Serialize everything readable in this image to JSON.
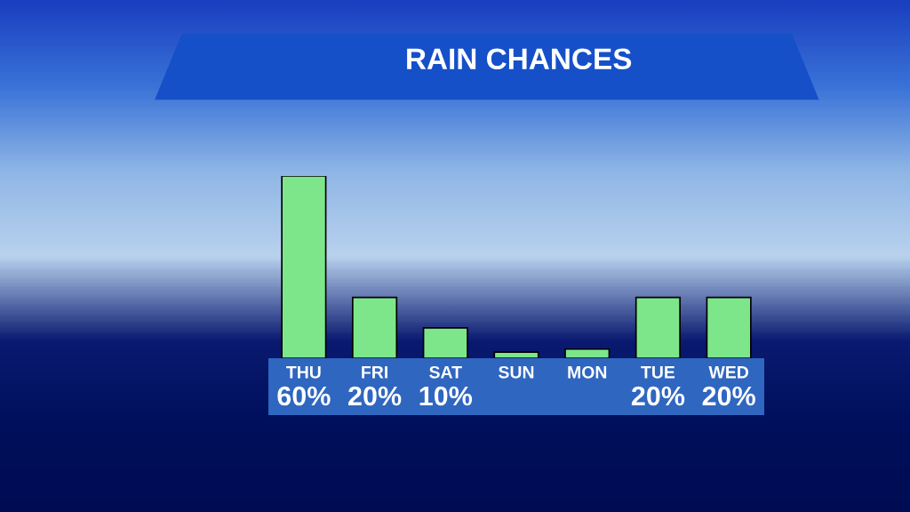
{
  "chart_data": {
    "type": "bar",
    "title": "RAIN CHANCES",
    "categories": [
      "THU",
      "FRI",
      "SAT",
      "SUN",
      "MON",
      "TUE",
      "WED"
    ],
    "values": [
      60,
      20,
      10,
      2,
      3,
      20,
      20
    ],
    "value_labels": [
      "60%",
      "20%",
      "10%",
      null,
      null,
      "20%",
      "20%"
    ],
    "color": "#7ee68a"
  }
}
